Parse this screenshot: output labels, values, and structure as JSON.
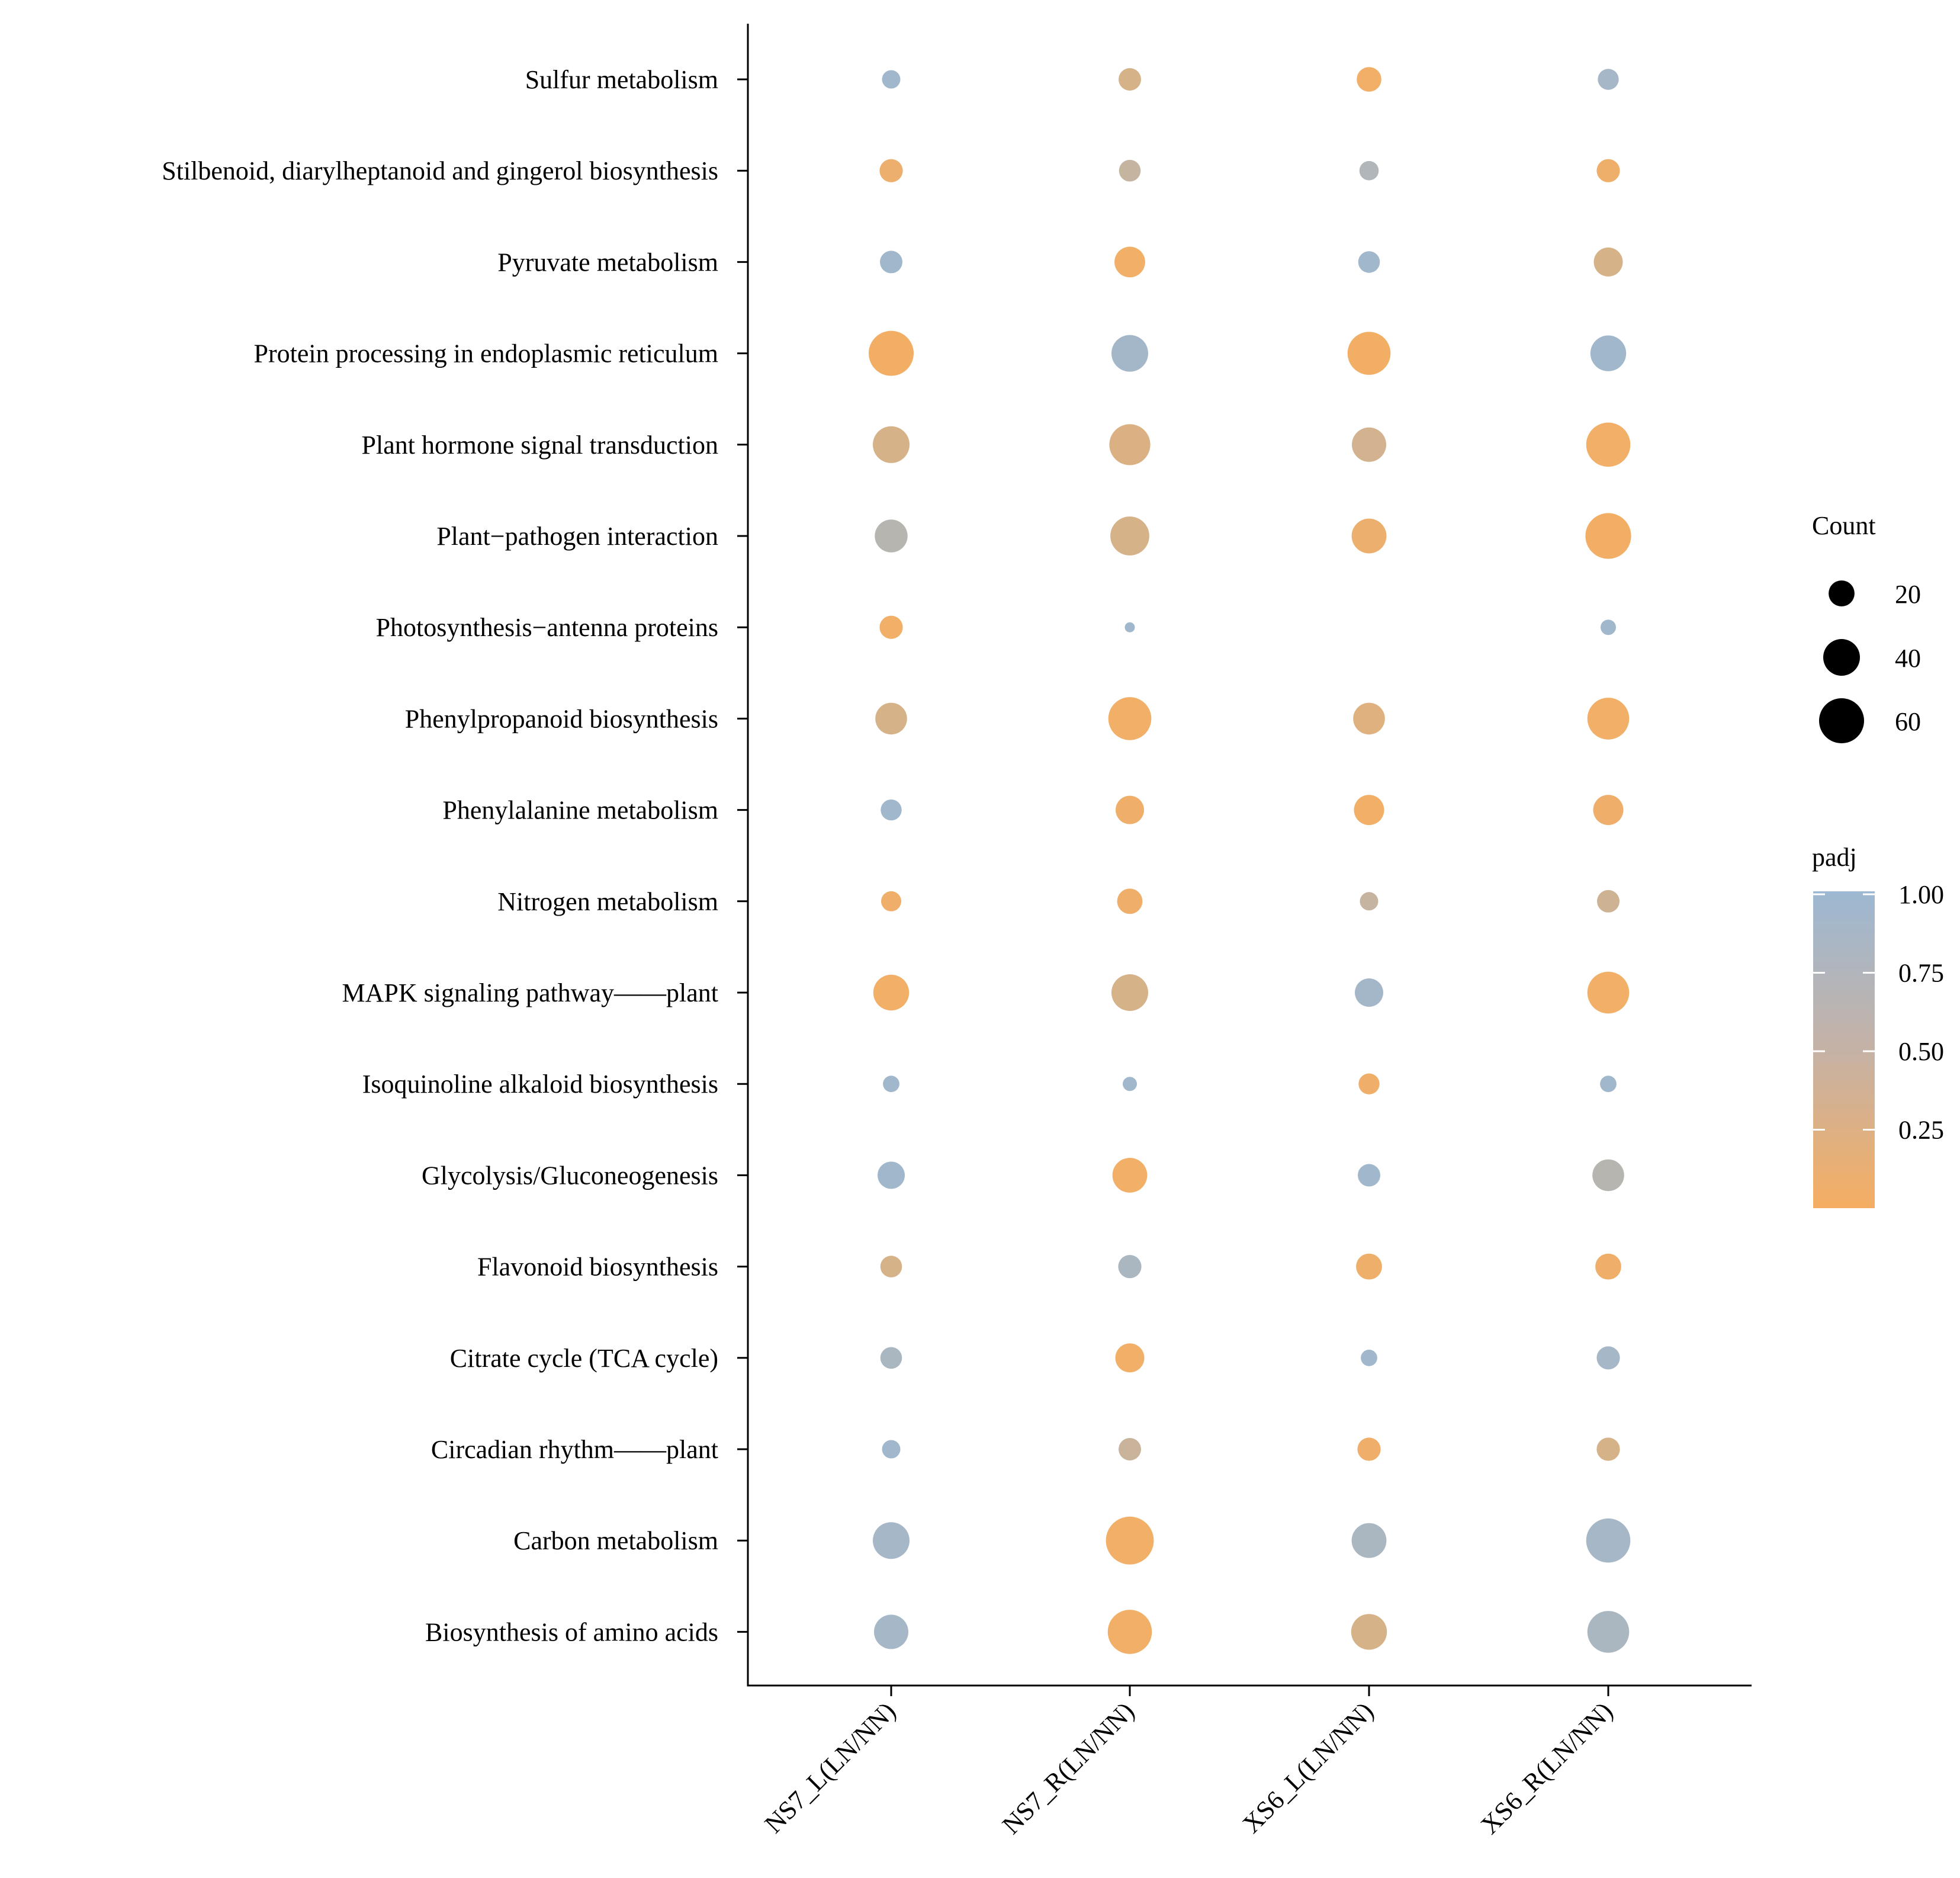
{
  "chart_data": {
    "type": "scatter",
    "subtype": "bubble",
    "grid": false,
    "categories_y": [
      "Sulfur metabolism",
      "Stilbenoid, diarylheptanoid and gingerol biosynthesis",
      "Pyruvate metabolism",
      "Protein processing in endoplasmic reticulum",
      "Plant hormone signal transduction",
      "Plant−pathogen interaction",
      "Photosynthesis−antenna proteins ",
      "Phenylpropanoid biosynthesis",
      "Phenylalanine metabolism",
      "Nitrogen metabolism",
      "MAPK signaling pathway——plant ",
      "Isoquinoline alkaloid biosynthesis",
      "Glycolysis/Gluconeogenesis ",
      "Flavonoid biosynthesis",
      "Citrate cycle (TCA cycle)",
      "Circadian rhythm——plant",
      "Carbon metabolism",
      "Biosynthesis of amino acids"
    ],
    "categories_x": [
      "NS7_L(LN/NN)",
      "NS7_R(LN/NN)",
      "XS6_L(LN/NN)",
      "XS6_R(LN/NN)"
    ],
    "points": [
      {
        "pathway": "Sulfur metabolism",
        "sample": "NS7_L(LN/NN)",
        "count": 10,
        "padj": 0.95
      },
      {
        "pathway": "Sulfur metabolism",
        "sample": "NS7_R(LN/NN)",
        "count": 15,
        "padj": 0.35
      },
      {
        "pathway": "Sulfur metabolism",
        "sample": "XS6_L(LN/NN)",
        "count": 18,
        "padj": 0.05
      },
      {
        "pathway": "Sulfur metabolism",
        "sample": "XS6_R(LN/NN)",
        "count": 13,
        "padj": 0.9
      },
      {
        "pathway": "Stilbenoid, diarylheptanoid and gingerol biosynthesis",
        "sample": "NS7_L(LN/NN)",
        "count": 16,
        "padj": 0.1
      },
      {
        "pathway": "Stilbenoid, diarylheptanoid and gingerol biosynthesis",
        "sample": "NS7_R(LN/NN)",
        "count": 14,
        "padj": 0.55
      },
      {
        "pathway": "Stilbenoid, diarylheptanoid and gingerol biosynthesis",
        "sample": "XS6_L(LN/NN)",
        "count": 11,
        "padj": 0.78
      },
      {
        "pathway": "Stilbenoid, diarylheptanoid and gingerol biosynthesis",
        "sample": "XS6_R(LN/NN)",
        "count": 16,
        "padj": 0.08
      },
      {
        "pathway": "Pyruvate metabolism",
        "sample": "NS7_L(LN/NN)",
        "count": 15,
        "padj": 0.95
      },
      {
        "pathway": "Pyruvate metabolism",
        "sample": "NS7_R(LN/NN)",
        "count": 28,
        "padj": 0.05
      },
      {
        "pathway": "Pyruvate metabolism",
        "sample": "XS6_L(LN/NN)",
        "count": 14,
        "padj": 0.95
      },
      {
        "pathway": "Pyruvate metabolism",
        "sample": "XS6_R(LN/NN)",
        "count": 25,
        "padj": 0.35
      },
      {
        "pathway": "Protein processing in endoplasmic reticulum",
        "sample": "NS7_L(LN/NN)",
        "count": 60,
        "padj": 0.03
      },
      {
        "pathway": "Protein processing in endoplasmic reticulum",
        "sample": "NS7_R(LN/NN)",
        "count": 40,
        "padj": 0.92
      },
      {
        "pathway": "Protein processing in endoplasmic reticulum",
        "sample": "XS6_L(LN/NN)",
        "count": 55,
        "padj": 0.03
      },
      {
        "pathway": "Protein processing in endoplasmic reticulum",
        "sample": "XS6_R(LN/NN)",
        "count": 38,
        "padj": 0.95
      },
      {
        "pathway": "Plant hormone signal transduction",
        "sample": "NS7_L(LN/NN)",
        "count": 40,
        "padj": 0.35
      },
      {
        "pathway": "Plant hormone signal transduction",
        "sample": "NS7_R(LN/NN)",
        "count": 50,
        "padj": 0.3
      },
      {
        "pathway": "Plant hormone signal transduction",
        "sample": "XS6_L(LN/NN)",
        "count": 35,
        "padj": 0.4
      },
      {
        "pathway": "Plant hormone signal transduction",
        "sample": "XS6_R(LN/NN)",
        "count": 58,
        "padj": 0.05
      },
      {
        "pathway": "Plant−pathogen interaction",
        "sample": "NS7_L(LN/NN)",
        "count": 32,
        "padj": 0.7
      },
      {
        "pathway": "Plant−pathogen interaction",
        "sample": "NS7_R(LN/NN)",
        "count": 45,
        "padj": 0.35
      },
      {
        "pathway": "Plant−pathogen interaction",
        "sample": "XS6_L(LN/NN)",
        "count": 36,
        "padj": 0.1
      },
      {
        "pathway": "Plant−pathogen interaction",
        "sample": "XS6_R(LN/NN)",
        "count": 62,
        "padj": 0.03
      },
      {
        "pathway": "Photosynthesis−antenna proteins ",
        "sample": "NS7_L(LN/NN)",
        "count": 16,
        "padj": 0.05
      },
      {
        "pathway": "Photosynthesis−antenna proteins ",
        "sample": "NS7_R(LN/NN)",
        "count": 3,
        "padj": 0.95
      },
      {
        "pathway": "Photosynthesis−antenna proteins ",
        "sample": "XS6_R(LN/NN)",
        "count": 7,
        "padj": 0.95
      },
      {
        "pathway": "Phenylpropanoid biosynthesis",
        "sample": "NS7_L(LN/NN)",
        "count": 30,
        "padj": 0.35
      },
      {
        "pathway": "Phenylpropanoid biosynthesis",
        "sample": "NS7_R(LN/NN)",
        "count": 55,
        "padj": 0.05
      },
      {
        "pathway": "Phenylpropanoid biosynthesis",
        "sample": "XS6_L(LN/NN)",
        "count": 30,
        "padj": 0.25
      },
      {
        "pathway": "Phenylpropanoid biosynthesis",
        "sample": "XS6_R(LN/NN)",
        "count": 52,
        "padj": 0.05
      },
      {
        "pathway": "Phenylalanine metabolism",
        "sample": "NS7_L(LN/NN)",
        "count": 13,
        "padj": 0.95
      },
      {
        "pathway": "Phenylalanine metabolism",
        "sample": "NS7_R(LN/NN)",
        "count": 24,
        "padj": 0.07
      },
      {
        "pathway": "Phenylalanine metabolism",
        "sample": "XS6_L(LN/NN)",
        "count": 27,
        "padj": 0.05
      },
      {
        "pathway": "Phenylalanine metabolism",
        "sample": "XS6_R(LN/NN)",
        "count": 27,
        "padj": 0.07
      },
      {
        "pathway": "Nitrogen metabolism",
        "sample": "NS7_L(LN/NN)",
        "count": 12,
        "padj": 0.07
      },
      {
        "pathway": "Nitrogen metabolism",
        "sample": "NS7_R(LN/NN)",
        "count": 19,
        "padj": 0.07
      },
      {
        "pathway": "Nitrogen metabolism",
        "sample": "XS6_L(LN/NN)",
        "count": 10,
        "padj": 0.55
      },
      {
        "pathway": "Nitrogen metabolism",
        "sample": "XS6_R(LN/NN)",
        "count": 15,
        "padj": 0.45
      },
      {
        "pathway": "MAPK signaling pathway——plant ",
        "sample": "NS7_L(LN/NN)",
        "count": 38,
        "padj": 0.05
      },
      {
        "pathway": "MAPK signaling pathway——plant ",
        "sample": "NS7_R(LN/NN)",
        "count": 40,
        "padj": 0.35
      },
      {
        "pathway": "MAPK signaling pathway——plant ",
        "sample": "XS6_L(LN/NN)",
        "count": 24,
        "padj": 0.92
      },
      {
        "pathway": "MAPK signaling pathway——plant ",
        "sample": "XS6_R(LN/NN)",
        "count": 52,
        "padj": 0.05
      },
      {
        "pathway": "Isoquinoline alkaloid biosynthesis",
        "sample": "NS7_L(LN/NN)",
        "count": 8,
        "padj": 0.95
      },
      {
        "pathway": "Isoquinoline alkaloid biosynthesis",
        "sample": "NS7_R(LN/NN)",
        "count": 6,
        "padj": 0.95
      },
      {
        "pathway": "Isoquinoline alkaloid biosynthesis",
        "sample": "XS6_L(LN/NN)",
        "count": 13,
        "padj": 0.07
      },
      {
        "pathway": "Isoquinoline alkaloid biosynthesis",
        "sample": "XS6_R(LN/NN)",
        "count": 8,
        "padj": 0.95
      },
      {
        "pathway": "Glycolysis/Gluconeogenesis ",
        "sample": "NS7_L(LN/NN)",
        "count": 22,
        "padj": 0.95
      },
      {
        "pathway": "Glycolysis/Gluconeogenesis ",
        "sample": "NS7_R(LN/NN)",
        "count": 36,
        "padj": 0.05
      },
      {
        "pathway": "Glycolysis/Gluconeogenesis ",
        "sample": "XS6_L(LN/NN)",
        "count": 15,
        "padj": 0.95
      },
      {
        "pathway": "Glycolysis/Gluconeogenesis ",
        "sample": "XS6_R(LN/NN)",
        "count": 30,
        "padj": 0.7
      },
      {
        "pathway": "Flavonoid biosynthesis",
        "sample": "NS7_L(LN/NN)",
        "count": 14,
        "padj": 0.35
      },
      {
        "pathway": "Flavonoid biosynthesis",
        "sample": "NS7_R(LN/NN)",
        "count": 16,
        "padj": 0.85
      },
      {
        "pathway": "Flavonoid biosynthesis",
        "sample": "XS6_L(LN/NN)",
        "count": 20,
        "padj": 0.08
      },
      {
        "pathway": "Flavonoid biosynthesis",
        "sample": "XS6_R(LN/NN)",
        "count": 20,
        "padj": 0.07
      },
      {
        "pathway": "Citrate cycle (TCA cycle)",
        "sample": "NS7_L(LN/NN)",
        "count": 14,
        "padj": 0.85
      },
      {
        "pathway": "Citrate cycle (TCA cycle)",
        "sample": "NS7_R(LN/NN)",
        "count": 25,
        "padj": 0.05
      },
      {
        "pathway": "Citrate cycle (TCA cycle)",
        "sample": "XS6_L(LN/NN)",
        "count": 8,
        "padj": 0.95
      },
      {
        "pathway": "Citrate cycle (TCA cycle)",
        "sample": "XS6_R(LN/NN)",
        "count": 16,
        "padj": 0.9
      },
      {
        "pathway": "Circadian rhythm——plant",
        "sample": "NS7_L(LN/NN)",
        "count": 10,
        "padj": 0.95
      },
      {
        "pathway": "Circadian rhythm——plant",
        "sample": "NS7_R(LN/NN)",
        "count": 15,
        "padj": 0.5
      },
      {
        "pathway": "Circadian rhythm——plant",
        "sample": "XS6_L(LN/NN)",
        "count": 16,
        "padj": 0.07
      },
      {
        "pathway": "Circadian rhythm——plant",
        "sample": "XS6_R(LN/NN)",
        "count": 16,
        "padj": 0.35
      },
      {
        "pathway": "Carbon metabolism",
        "sample": "NS7_L(LN/NN)",
        "count": 40,
        "padj": 0.9
      },
      {
        "pathway": "Carbon metabolism",
        "sample": "NS7_R(LN/NN)",
        "count": 68,
        "padj": 0.05
      },
      {
        "pathway": "Carbon metabolism",
        "sample": "XS6_L(LN/NN)",
        "count": 36,
        "padj": 0.85
      },
      {
        "pathway": "Carbon metabolism",
        "sample": "XS6_R(LN/NN)",
        "count": 58,
        "padj": 0.9
      },
      {
        "pathway": "Biosynthesis of amino acids",
        "sample": "NS7_L(LN/NN)",
        "count": 35,
        "padj": 0.9
      },
      {
        "pathway": "Biosynthesis of amino acids",
        "sample": "NS7_R(LN/NN)",
        "count": 58,
        "padj": 0.05
      },
      {
        "pathway": "Biosynthesis of amino acids",
        "sample": "XS6_L(LN/NN)",
        "count": 38,
        "padj": 0.35
      },
      {
        "pathway": "Biosynthesis of amino acids",
        "sample": "XS6_R(LN/NN)",
        "count": 52,
        "padj": 0.85
      }
    ],
    "size_legend": {
      "title": "Count",
      "values": [
        20,
        40,
        60
      ],
      "labels": [
        "20",
        "40",
        "60"
      ]
    },
    "color_legend": {
      "title": "padj",
      "range": [
        0,
        1
      ],
      "ticks": [
        1.0,
        0.75,
        0.5,
        0.25
      ],
      "tick_labels": [
        "1.00",
        "0.75",
        "0.50",
        "0.25"
      ],
      "low_color": "#F5AE62",
      "high_color": "#9DB8D2"
    },
    "legend_position": "right"
  }
}
